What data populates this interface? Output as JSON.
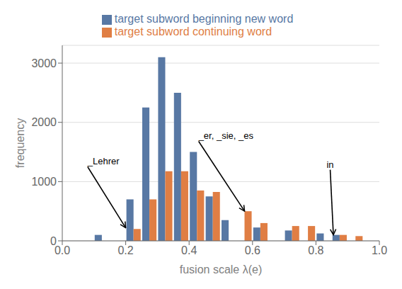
{
  "chart_data": {
    "type": "histogram",
    "bins": [
      0.0,
      0.05,
      0.1,
      0.15,
      0.2,
      0.25,
      0.3,
      0.35,
      0.4,
      0.45,
      0.5,
      0.55,
      0.6,
      0.65,
      0.7,
      0.75,
      0.8,
      0.85,
      0.9,
      0.95,
      1.0
    ],
    "series": [
      {
        "name": "target subword beginning new word",
        "color": "#5878a4",
        "values": [
          0,
          0,
          100,
          0,
          700,
          2250,
          3100,
          2500,
          1500,
          750,
          350,
          0,
          225,
          0,
          175,
          0,
          125,
          100,
          0,
          0
        ]
      },
      {
        "name": "target subword continuing word",
        "color": "#e07e44",
        "values": [
          0,
          0,
          0,
          0,
          200,
          700,
          1175,
          1175,
          850,
          825,
          0,
          500,
          300,
          0,
          250,
          250,
          0,
          100,
          80,
          0
        ]
      }
    ],
    "xlabel": "fusion scale λ(e)",
    "ylabel": "frequency",
    "xlim": [
      0.0,
      1.0
    ],
    "ylim": [
      0,
      3300
    ],
    "xticks": [
      {
        "value": 0,
        "label": "0.0"
      },
      0.2,
      0.4,
      0.6,
      0.8,
      {
        "value": 1,
        "label": "1.0"
      }
    ],
    "yticks": [
      0,
      1000,
      2000,
      3000
    ],
    "grid": true,
    "legend": "top",
    "annotations": [
      {
        "text": "_Lehrer",
        "xy": [
          0.2,
          220
        ],
        "xytext": [
          0.08,
          1250
        ]
      },
      {
        "text": "_er, _sie, _es",
        "xy": [
          0.575,
          500
        ],
        "xytext": [
          0.43,
          1680
        ]
      },
      {
        "text": "in",
        "xy": [
          0.855,
          100
        ],
        "xytext": [
          0.845,
          1200
        ]
      }
    ]
  }
}
